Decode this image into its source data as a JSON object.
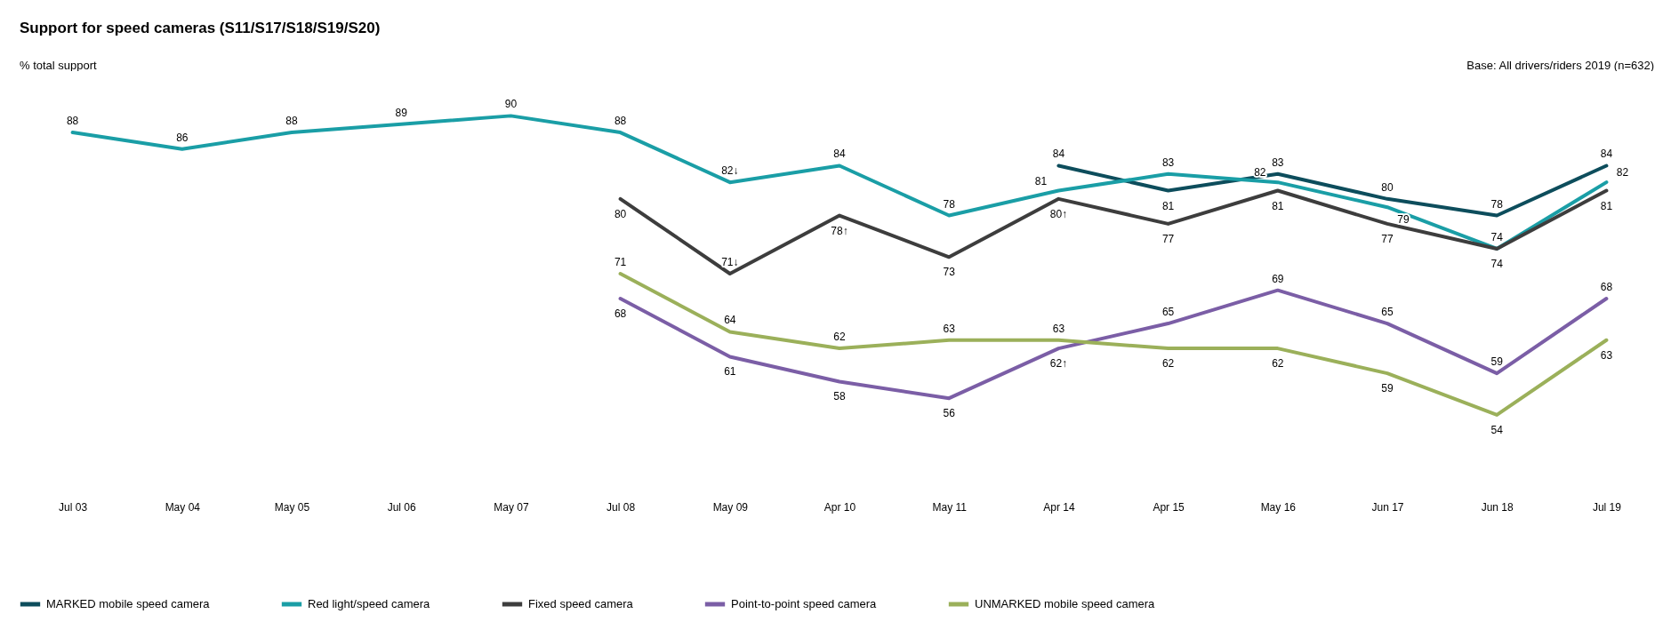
{
  "chart_data": {
    "type": "line",
    "title": "Support for speed cameras (S11/S17/S18/S19/S20)",
    "subtitle": "% total support",
    "annotations": [
      "Base: All drivers/riders 2019 (n=632)"
    ],
    "categories": [
      "Jul 03",
      "May 04",
      "May 05",
      "Jul 06",
      "May 07",
      "Jul 08",
      "May 09",
      "Apr 10",
      "May 11",
      "Apr 14",
      "Apr 15",
      "May 16",
      "Jun 17",
      "Jun 18",
      "Jul 19"
    ],
    "legend": "bottom",
    "grid": false,
    "marker": "none",
    "tick_labels": "x",
    "series": [
      {
        "name": "MARKED mobile speed camera",
        "color": "#0d4d5c",
        "values": [
          null,
          null,
          null,
          null,
          null,
          null,
          null,
          null,
          null,
          84,
          81,
          83,
          80,
          78,
          84
        ],
        "value_labels": [
          null,
          null,
          null,
          null,
          null,
          null,
          null,
          null,
          null,
          "84",
          "81",
          "83",
          "80",
          "78",
          "84"
        ]
      },
      {
        "name": "Red light/speed camera",
        "color": "#1a9ea6",
        "values": [
          88,
          86,
          88,
          89,
          90,
          88,
          82,
          84,
          78,
          81,
          83,
          82,
          79,
          74,
          82
        ],
        "value_labels": [
          "88",
          "86",
          "88",
          "89",
          "90",
          "88",
          "82↓",
          "84",
          "78",
          "81",
          "83",
          "82",
          "79",
          "74",
          "82"
        ]
      },
      {
        "name": "Fixed speed camera",
        "color": "#3d3d3d",
        "values": [
          null,
          null,
          null,
          null,
          null,
          80,
          71,
          78,
          73,
          80,
          77,
          81,
          77,
          74,
          81
        ],
        "value_labels": [
          null,
          null,
          null,
          null,
          null,
          "80",
          "71↓",
          "78↑",
          "73",
          "80↑",
          "77",
          "81",
          "77",
          "74",
          "81"
        ]
      },
      {
        "name": "Point-to-point speed camera",
        "color": "#7b5ea6",
        "values": [
          null,
          null,
          null,
          null,
          null,
          68,
          61,
          58,
          56,
          62,
          65,
          69,
          65,
          59,
          68
        ],
        "value_labels": [
          null,
          null,
          null,
          null,
          null,
          "68",
          "61",
          "58",
          "56",
          "62↑",
          "65",
          "69",
          "65",
          "59",
          "68"
        ]
      },
      {
        "name": "UNMARKED mobile speed camera",
        "color": "#9bb05a",
        "values": [
          null,
          null,
          null,
          null,
          null,
          71,
          64,
          62,
          63,
          63,
          62,
          62,
          59,
          54,
          63
        ],
        "value_labels": [
          null,
          null,
          null,
          null,
          null,
          "71",
          "64",
          "62",
          "63",
          "63",
          "62",
          "62",
          "59",
          "54",
          "63"
        ]
      }
    ]
  }
}
